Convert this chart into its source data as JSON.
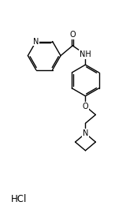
{
  "bg_color": "#ffffff",
  "atom_color": "#000000",
  "bond_color": "#000000",
  "figsize": [
    1.6,
    2.7
  ],
  "dpi": 100,
  "xlim": [
    0,
    8
  ],
  "ylim": [
    0,
    13.5
  ]
}
